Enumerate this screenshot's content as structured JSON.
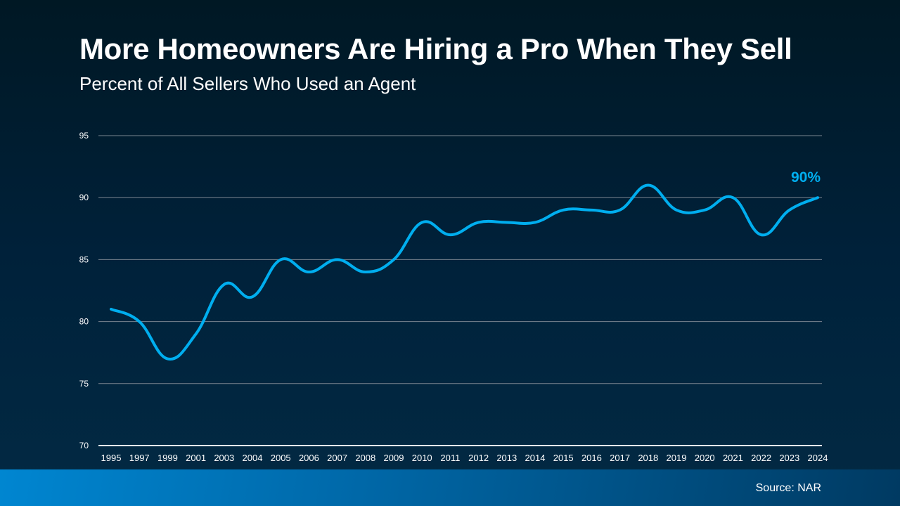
{
  "chart_data": {
    "type": "line",
    "title": "More Homeowners Are Hiring a Pro When They Sell",
    "subtitle": "Percent of All Sellers Who Used an Agent",
    "categories": [
      "1995",
      "1997",
      "1999",
      "2001",
      "2003",
      "2004",
      "2005",
      "2006",
      "2007",
      "2008",
      "2009",
      "2010",
      "2011",
      "2012",
      "2013",
      "2014",
      "2015",
      "2016",
      "2017",
      "2018",
      "2019",
      "2020",
      "2021",
      "2022",
      "2023",
      "2024"
    ],
    "values": [
      81,
      80,
      77,
      79,
      83,
      82,
      85,
      84,
      85,
      84,
      85,
      88,
      87,
      88,
      88,
      88,
      89,
      89,
      89,
      91,
      89,
      89,
      90,
      87,
      89,
      90
    ],
    "ylim": [
      70,
      95
    ],
    "yticks": [
      "70",
      "75",
      "80",
      "85",
      "90",
      "95"
    ],
    "grid": true,
    "annotation": "90%",
    "line_color": "#00aeef",
    "source": "Source: NAR"
  }
}
